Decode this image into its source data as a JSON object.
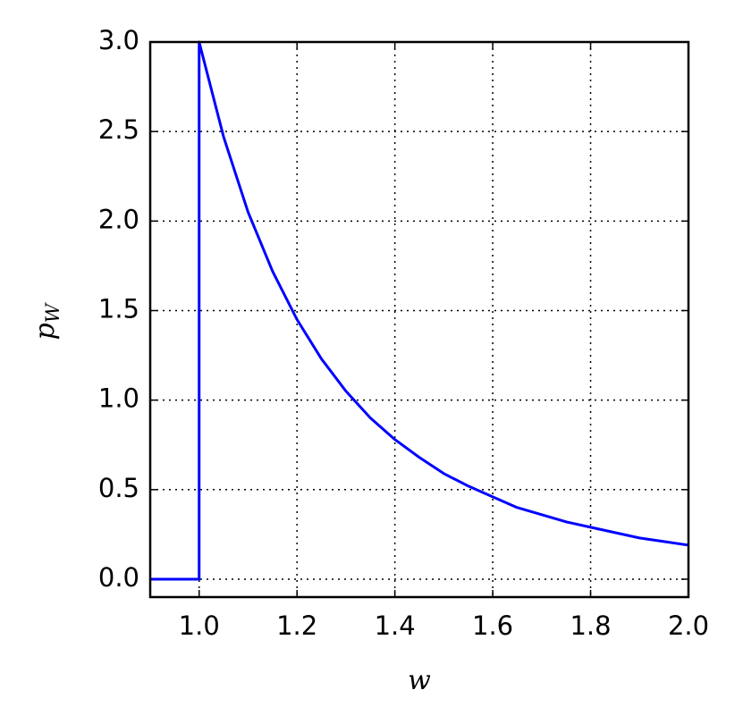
{
  "chart_data": {
    "type": "line",
    "xlabel": "w",
    "ylabel": "p",
    "ylabel_subscript": "W",
    "x": [
      0.9,
      1.0,
      1.0,
      1.05,
      1.1,
      1.15,
      1.2,
      1.25,
      1.3,
      1.35,
      1.4,
      1.45,
      1.5,
      1.55,
      1.6,
      1.65,
      1.7,
      1.75,
      1.8,
      1.85,
      1.9,
      1.95,
      2.0
    ],
    "values": [
      0,
      0,
      3.0,
      2.47,
      2.05,
      1.72,
      1.45,
      1.23,
      1.05,
      0.9,
      0.78,
      0.68,
      0.59,
      0.52,
      0.46,
      0.4,
      0.36,
      0.32,
      0.29,
      0.26,
      0.23,
      0.21,
      0.19
    ],
    "color": "#0000ff",
    "xlim": [
      0.9,
      2.0
    ],
    "xticks": [
      {
        "value": 1.0,
        "label": "1.0"
      },
      {
        "value": 1.2,
        "label": "1.2"
      },
      {
        "value": 1.4,
        "label": "1.4"
      },
      {
        "value": 1.6,
        "label": "1.6"
      },
      {
        "value": 1.8,
        "label": "1.8"
      },
      {
        "value": 2.0,
        "label": "2.0"
      }
    ],
    "ylim": [
      -0.1,
      3.0
    ],
    "yticks": [
      {
        "value": 0,
        "label": "0.0"
      },
      {
        "value": 0.5,
        "label": "0.5"
      },
      {
        "value": 1.0,
        "label": "1.0"
      },
      {
        "value": 1.5,
        "label": "1.5"
      },
      {
        "value": 2.0,
        "label": "2.0"
      },
      {
        "value": 2.5,
        "label": "2.5"
      },
      {
        "value": 3.0,
        "label": "3.0"
      }
    ],
    "grid": true
  }
}
